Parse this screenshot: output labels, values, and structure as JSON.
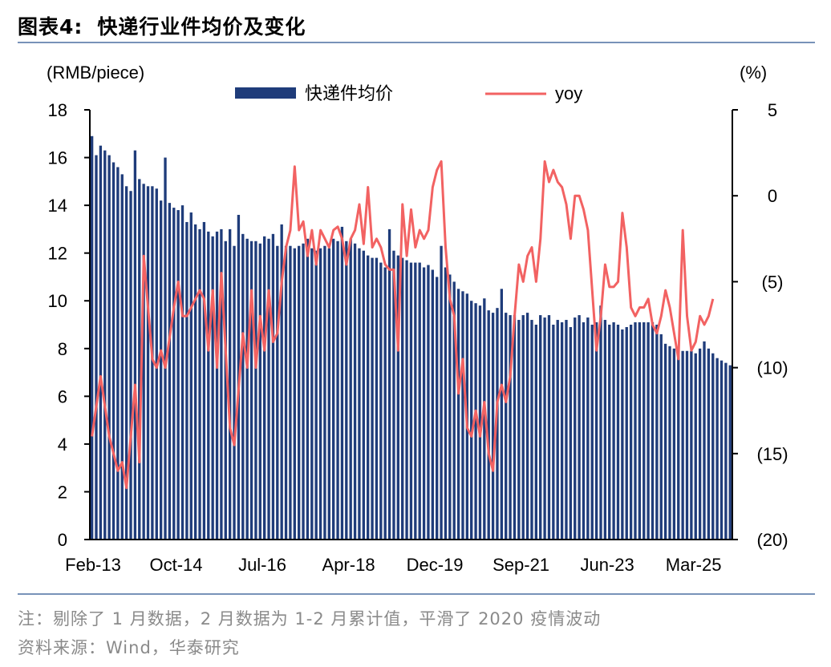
{
  "title": {
    "label": "图表4:",
    "text": "快递行业件均价及变化"
  },
  "footnotes": {
    "note": "注：剔除了 1 月数据，2 月数据为 1-2 月累计值，平滑了 2020 疫情波动",
    "source": "资料来源：Wind，华泰研究"
  },
  "colors": {
    "bar": "#1f3c7a",
    "line": "#f26262",
    "rule": "#7892b8"
  },
  "chart_data": {
    "type": "bar+line",
    "left_axis": {
      "unit": "(RMB/piece)",
      "ylim": [
        0,
        18
      ],
      "ticks": [
        "0",
        "2",
        "4",
        "6",
        "8",
        "10",
        "12",
        "14",
        "16",
        "18"
      ]
    },
    "right_axis": {
      "unit": "(%)",
      "ylim": [
        -20,
        5
      ],
      "ticks": [
        "5",
        "0",
        "(5)",
        "(10)",
        "(15)",
        "(20)"
      ]
    },
    "x_ticks": [
      "Feb-13",
      "Oct-14",
      "Jul-16",
      "Apr-18",
      "Dec-19",
      "Sep-21",
      "Jun-23",
      "Mar-25"
    ],
    "legend": {
      "placement": "top",
      "bar_series": "快递件均价",
      "line_series": "yoy"
    },
    "series": [
      {
        "name": "快递件均价",
        "kind": "bar",
        "axis": "left",
        "values": [
          16.9,
          16.1,
          16.5,
          16.3,
          16.1,
          15.8,
          15.6,
          15.3,
          14.8,
          14.6,
          16.3,
          15.1,
          14.9,
          14.8,
          14.8,
          14.7,
          14.2,
          16.0,
          14.1,
          13.9,
          13.8,
          14.0,
          13.3,
          13.7,
          13.2,
          13.0,
          13.3,
          12.9,
          12.7,
          12.9,
          13.0,
          12.5,
          13.0,
          12.3,
          13.6,
          12.8,
          12.6,
          12.5,
          12.5,
          12.4,
          12.7,
          12.6,
          12.8,
          12.3,
          13.2,
          12.3,
          12.3,
          12.2,
          12.3,
          12.4,
          12.6,
          12.2,
          12.1,
          12.2,
          12.3,
          12.2,
          12.6,
          12.5,
          13.1,
          12.5,
          12.6,
          12.4,
          12.2,
          12.1,
          11.9,
          11.8,
          11.8,
          11.6,
          11.4,
          13.0,
          12.1,
          11.9,
          11.8,
          11.7,
          11.6,
          11.6,
          11.6,
          11.4,
          11.5,
          11.3,
          11.0,
          12.3,
          11.4,
          11.1,
          10.8,
          10.5,
          10.4,
          10.3,
          10.0,
          9.9,
          9.8,
          10.1,
          9.6,
          9.5,
          9.7,
          10.5,
          9.5,
          9.4,
          9.4,
          9.2,
          9.4,
          9.5,
          9.2,
          9.0,
          9.4,
          9.3,
          9.4,
          9.0,
          9.2,
          9.1,
          9.2,
          8.9,
          9.3,
          9.4,
          9.1,
          9.3,
          9.0,
          9.1,
          9.8,
          9.2,
          9.0,
          9.1,
          9.0,
          8.8,
          8.9,
          9.0,
          9.1,
          9.1,
          9.1,
          9.1,
          9.1,
          9.0,
          8.6,
          8.2,
          8.1,
          8.0,
          8.0,
          7.9,
          7.9,
          7.9,
          7.8,
          8.0,
          8.3,
          8.0,
          7.8,
          7.6,
          7.5,
          7.4,
          7.3
        ]
      },
      {
        "name": "yoy",
        "kind": "line",
        "axis": "right",
        "points": [
          [
            0,
            -14
          ],
          [
            2,
            -10.5
          ],
          [
            4,
            -14
          ],
          [
            6,
            -16
          ],
          [
            7,
            -15.5
          ],
          [
            8,
            -17
          ],
          [
            10,
            -11
          ],
          [
            11,
            -15.5
          ],
          [
            12,
            -3.5
          ],
          [
            14,
            -9.5
          ],
          [
            15,
            -10
          ],
          [
            16,
            -9
          ],
          [
            17,
            -10
          ],
          [
            19,
            -6.5
          ],
          [
            20,
            -5
          ],
          [
            21,
            -7
          ],
          [
            22,
            -7
          ],
          [
            24,
            -6
          ],
          [
            25,
            -5.5
          ],
          [
            26,
            -6
          ],
          [
            27,
            -9
          ],
          [
            28,
            -5.5
          ],
          [
            29,
            -10
          ],
          [
            30,
            -4.5
          ],
          [
            31,
            -9
          ],
          [
            32,
            -13.5
          ],
          [
            33,
            -14.5
          ],
          [
            35,
            -8
          ],
          [
            36,
            -10
          ],
          [
            37,
            -5.5
          ],
          [
            38,
            -10
          ],
          [
            39,
            -7
          ],
          [
            40,
            -9
          ],
          [
            41,
            -5.5
          ],
          [
            42,
            -8.5
          ],
          [
            43,
            -8
          ],
          [
            44,
            -5
          ],
          [
            45,
            -3
          ],
          [
            46,
            -2
          ],
          [
            47,
            1.7
          ],
          [
            48,
            -2
          ],
          [
            49,
            -1.5
          ],
          [
            50,
            -3.5
          ],
          [
            51,
            -2
          ],
          [
            52,
            -4
          ],
          [
            53,
            -2
          ],
          [
            54,
            -2.5
          ],
          [
            55,
            -3
          ],
          [
            56,
            -2
          ],
          [
            57,
            -1.8
          ],
          [
            58,
            -2.5
          ],
          [
            59,
            -4
          ],
          [
            60,
            -2.5
          ],
          [
            61,
            -2
          ],
          [
            62,
            -0.5
          ],
          [
            63,
            -2.8
          ],
          [
            64,
            0.5
          ],
          [
            65,
            -3
          ],
          [
            66,
            -2.5
          ],
          [
            67,
            -3
          ],
          [
            68,
            -4
          ],
          [
            69,
            -4.3
          ],
          [
            70,
            -4.3
          ],
          [
            71,
            -9
          ],
          [
            72,
            -0.5
          ],
          [
            73,
            -3.5
          ],
          [
            74,
            -0.8
          ],
          [
            75,
            -3
          ],
          [
            76,
            -2
          ],
          [
            77,
            -2.5
          ],
          [
            78,
            -2
          ],
          [
            79,
            0.5
          ],
          [
            80,
            1.5
          ],
          [
            81,
            2
          ],
          [
            82,
            -3
          ],
          [
            83,
            -6
          ],
          [
            84,
            -7
          ],
          [
            85,
            -11.5
          ],
          [
            86,
            -9.5
          ],
          [
            87,
            -13.5
          ],
          [
            88,
            -14
          ],
          [
            89,
            -12.5
          ],
          [
            90,
            -14
          ],
          [
            91,
            -12
          ],
          [
            92,
            -15
          ],
          [
            93,
            -16
          ],
          [
            94,
            -12
          ],
          [
            95,
            -11
          ],
          [
            96,
            -12
          ],
          [
            97,
            -10.5
          ],
          [
            98,
            -7
          ],
          [
            99,
            -4
          ],
          [
            100,
            -5
          ],
          [
            101,
            -3.5
          ],
          [
            102,
            -3
          ],
          [
            103,
            -5
          ],
          [
            104,
            -2.5
          ],
          [
            105,
            2
          ],
          [
            106,
            0.8
          ],
          [
            107,
            1.5
          ],
          [
            108,
            0.8
          ],
          [
            109,
            0.5
          ],
          [
            110,
            -0.5
          ],
          [
            111,
            -2.5
          ],
          [
            112,
            0
          ],
          [
            113,
            0
          ],
          [
            114,
            -0.8
          ],
          [
            115,
            -2
          ],
          [
            116,
            -5.5
          ],
          [
            117,
            -9
          ],
          [
            118,
            -7
          ],
          [
            119,
            -4
          ],
          [
            120,
            -5.3
          ],
          [
            121,
            -5.3
          ],
          [
            122,
            -5
          ],
          [
            123,
            -1
          ],
          [
            124,
            -3
          ],
          [
            125,
            -6.5
          ],
          [
            126,
            -7
          ],
          [
            127,
            -6.5
          ],
          [
            128,
            -6.5
          ],
          [
            129,
            -6
          ],
          [
            130,
            -7.5
          ],
          [
            131,
            -8
          ],
          [
            132,
            -7
          ],
          [
            133,
            -5.5
          ],
          [
            134,
            -6.5
          ],
          [
            135,
            -8
          ],
          [
            136,
            -9.5
          ],
          [
            137,
            -2
          ],
          [
            138,
            -7
          ],
          [
            139,
            -9
          ],
          [
            140,
            -8.5
          ],
          [
            141,
            -7
          ],
          [
            142,
            -7.5
          ],
          [
            143,
            -7
          ],
          [
            144,
            -6
          ]
        ]
      }
    ]
  }
}
